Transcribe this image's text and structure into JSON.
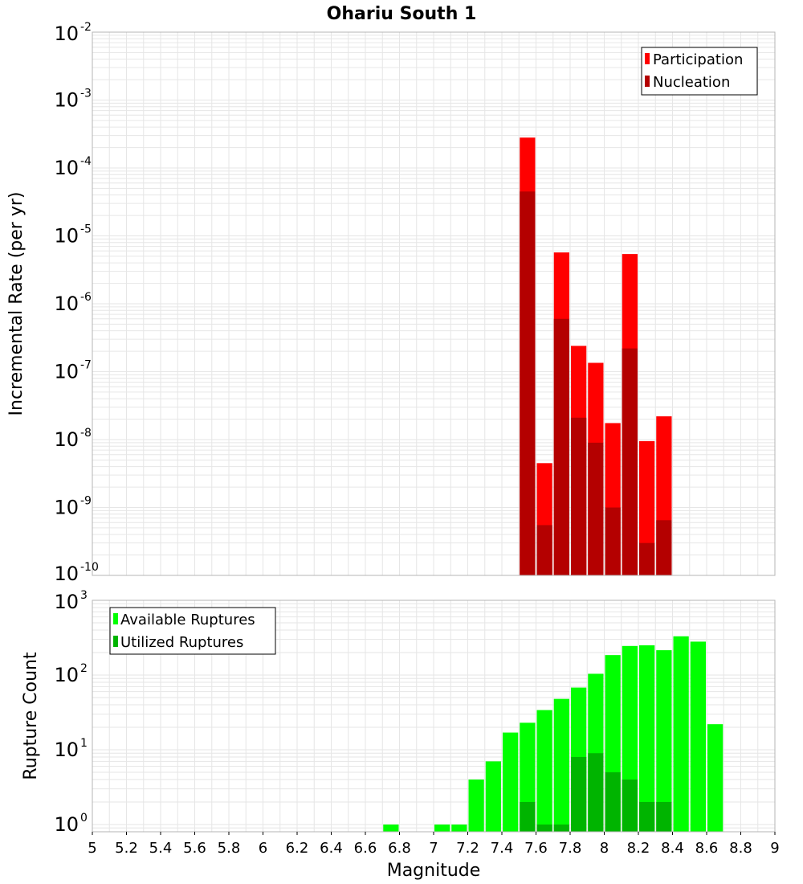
{
  "chart_data": [
    {
      "type": "bar",
      "title": "Ohariu South 1",
      "xlabel": "",
      "ylabel": "Incremental Rate (per yr)",
      "yscale": "log",
      "ylim": [
        1e-10,
        0.01
      ],
      "xlim": [
        5,
        9
      ],
      "x": [
        7.55,
        7.65,
        7.75,
        7.85,
        7.95,
        8.05,
        8.15,
        8.25,
        8.35
      ],
      "series": [
        {
          "name": "Participation",
          "color": "#ff0000",
          "values": [
            0.00028,
            4.5e-09,
            5.7e-06,
            2.4e-07,
            1.35e-07,
            1.75e-08,
            5.4e-06,
            9.5e-09,
            2.2e-08
          ]
        },
        {
          "name": "Nucleation",
          "color": "#b40000",
          "values": [
            4.5e-05,
            5.5e-10,
            6e-07,
            2.1e-08,
            9e-09,
            1e-09,
            2.2e-07,
            3e-10,
            6.5e-10
          ]
        }
      ],
      "legend": "top-right",
      "grid": true
    },
    {
      "type": "bar",
      "xlabel": "Magnitude",
      "ylabel": "Rupture Count",
      "yscale": "log",
      "ylim": [
        0.8,
        1000
      ],
      "xlim": [
        5,
        9
      ],
      "xticks": [
        "5",
        "5.2",
        "5.4",
        "5.6",
        "5.8",
        "6",
        "6.2",
        "6.4",
        "6.6",
        "6.8",
        "7",
        "7.2",
        "7.4",
        "7.6",
        "7.8",
        "8",
        "8.2",
        "8.4",
        "8.6",
        "8.8",
        "9"
      ],
      "yticks": [
        {
          "base": "10",
          "exp": "0",
          "value": 1
        },
        {
          "base": "10",
          "exp": "1",
          "value": 10
        },
        {
          "base": "10",
          "exp": "2",
          "value": 100
        },
        {
          "base": "10",
          "exp": "3",
          "value": 1000
        }
      ],
      "x": [
        6.75,
        7.05,
        7.15,
        7.25,
        7.35,
        7.45,
        7.55,
        7.65,
        7.75,
        7.85,
        7.95,
        8.05,
        8.15,
        8.25,
        8.35,
        8.45,
        8.55,
        8.65
      ],
      "series": [
        {
          "name": "Available Ruptures",
          "color": "#00ff00",
          "values": [
            1,
            1,
            1,
            4,
            7,
            17,
            23,
            34,
            48,
            68,
            104,
            185,
            245,
            250,
            215,
            330,
            280,
            22
          ]
        },
        {
          "name": "Utilized Ruptures",
          "color": "#00b400",
          "values": [
            0,
            0,
            0,
            0,
            0,
            0,
            2,
            1,
            1,
            8,
            9,
            5,
            4,
            2,
            2,
            0,
            0,
            0
          ]
        }
      ],
      "legend": "top-left",
      "grid": true
    }
  ],
  "top_yticks": [
    {
      "base": "10",
      "exp": "-10",
      "value": 1e-10
    },
    {
      "base": "10",
      "exp": "-9",
      "value": 1e-09
    },
    {
      "base": "10",
      "exp": "-8",
      "value": 1e-08
    },
    {
      "base": "10",
      "exp": "-7",
      "value": 1e-07
    },
    {
      "base": "10",
      "exp": "-6",
      "value": 1e-06
    },
    {
      "base": "10",
      "exp": "-5",
      "value": 1e-05
    },
    {
      "base": "10",
      "exp": "-4",
      "value": 0.0001
    },
    {
      "base": "10",
      "exp": "-3",
      "value": 0.001
    },
    {
      "base": "10",
      "exp": "-2",
      "value": 0.01
    }
  ],
  "colors": {
    "grid": "#e6e6e6",
    "frame": "#b4b4b4"
  }
}
